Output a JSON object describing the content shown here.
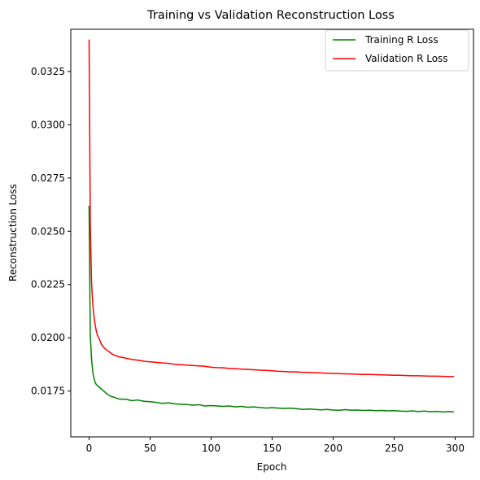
{
  "chart_data": {
    "type": "line",
    "title": "Training vs Validation Reconstruction Loss",
    "xlabel": "Epoch",
    "ylabel": "Reconstruction Loss",
    "xlim": [
      -15,
      315
    ],
    "ylim": [
      0.01535,
      0.03448
    ],
    "xticks": [
      0,
      50,
      100,
      150,
      200,
      250,
      300
    ],
    "yticks": [
      0.0175,
      0.02,
      0.0225,
      0.025,
      0.0275,
      0.03,
      0.0325
    ],
    "ytick_labels": [
      "0.0175",
      "0.0200",
      "0.0225",
      "0.0250",
      "0.0275",
      "0.0300",
      "0.0325"
    ],
    "grid": false,
    "legend_position": "top-right",
    "series": [
      {
        "name": "Training R Loss",
        "color": "#008000",
        "x": [
          0,
          1,
          2,
          3,
          4,
          5,
          6,
          7,
          8,
          9,
          10,
          12,
          15,
          18,
          20,
          25,
          30,
          35,
          40,
          45,
          50,
          55,
          60,
          65,
          70,
          75,
          80,
          85,
          90,
          95,
          100,
          105,
          110,
          115,
          120,
          125,
          130,
          135,
          140,
          145,
          150,
          155,
          160,
          165,
          170,
          175,
          180,
          185,
          190,
          195,
          200,
          205,
          210,
          215,
          220,
          225,
          230,
          235,
          240,
          245,
          250,
          255,
          260,
          265,
          270,
          275,
          280,
          285,
          290,
          295,
          299
        ],
        "values": [
          0.0262,
          0.0201,
          0.019,
          0.0184,
          0.0181,
          0.0179,
          0.0178,
          0.01775,
          0.0177,
          0.01765,
          0.0176,
          0.0175,
          0.01735,
          0.01725,
          0.01722,
          0.01712,
          0.01712,
          0.01705,
          0.01708,
          0.01702,
          0.017,
          0.01697,
          0.01692,
          0.01695,
          0.0169,
          0.01688,
          0.01687,
          0.01684,
          0.01686,
          0.0168,
          0.01682,
          0.0168,
          0.01678,
          0.0168,
          0.01676,
          0.01678,
          0.01674,
          0.01676,
          0.01673,
          0.0167,
          0.01672,
          0.0167,
          0.01668,
          0.0167,
          0.01667,
          0.01664,
          0.01666,
          0.01664,
          0.01662,
          0.01664,
          0.01661,
          0.0166,
          0.01663,
          0.0166,
          0.01661,
          0.01659,
          0.0166,
          0.01658,
          0.01659,
          0.01657,
          0.01658,
          0.01656,
          0.01655,
          0.01657,
          0.01654,
          0.01656,
          0.01653,
          0.01655,
          0.01652,
          0.01654,
          0.01652
        ]
      },
      {
        "name": "Validation R Loss",
        "color": "#ff0000",
        "x": [
          0,
          1,
          2,
          3,
          4,
          5,
          6,
          7,
          8,
          9,
          10,
          12,
          15,
          18,
          20,
          25,
          30,
          35,
          40,
          45,
          50,
          55,
          60,
          65,
          70,
          75,
          80,
          85,
          90,
          95,
          100,
          105,
          110,
          115,
          120,
          125,
          130,
          135,
          140,
          145,
          150,
          155,
          160,
          165,
          170,
          175,
          180,
          185,
          190,
          195,
          200,
          205,
          210,
          215,
          220,
          225,
          230,
          235,
          240,
          245,
          250,
          255,
          260,
          265,
          270,
          275,
          280,
          285,
          290,
          295,
          299
        ],
        "values": [
          0.034,
          0.0253,
          0.0226,
          0.0216,
          0.021,
          0.0206,
          0.0203,
          0.0201,
          0.02,
          0.01985,
          0.0197,
          0.01955,
          0.0194,
          0.01928,
          0.0192,
          0.0191,
          0.01905,
          0.01898,
          0.01895,
          0.0189,
          0.01887,
          0.01885,
          0.01882,
          0.0188,
          0.01876,
          0.01874,
          0.01872,
          0.0187,
          0.01868,
          0.01866,
          0.01862,
          0.0186,
          0.01859,
          0.01856,
          0.01855,
          0.01853,
          0.01852,
          0.0185,
          0.01848,
          0.01847,
          0.01845,
          0.01843,
          0.01842,
          0.0184,
          0.0184,
          0.01838,
          0.01837,
          0.01836,
          0.01835,
          0.01834,
          0.01833,
          0.01832,
          0.01831,
          0.0183,
          0.01829,
          0.01828,
          0.01828,
          0.01827,
          0.01826,
          0.01825,
          0.01824,
          0.01824,
          0.01823,
          0.01822,
          0.01822,
          0.01821,
          0.0182,
          0.0182,
          0.01819,
          0.01818,
          0.01818
        ]
      }
    ]
  }
}
